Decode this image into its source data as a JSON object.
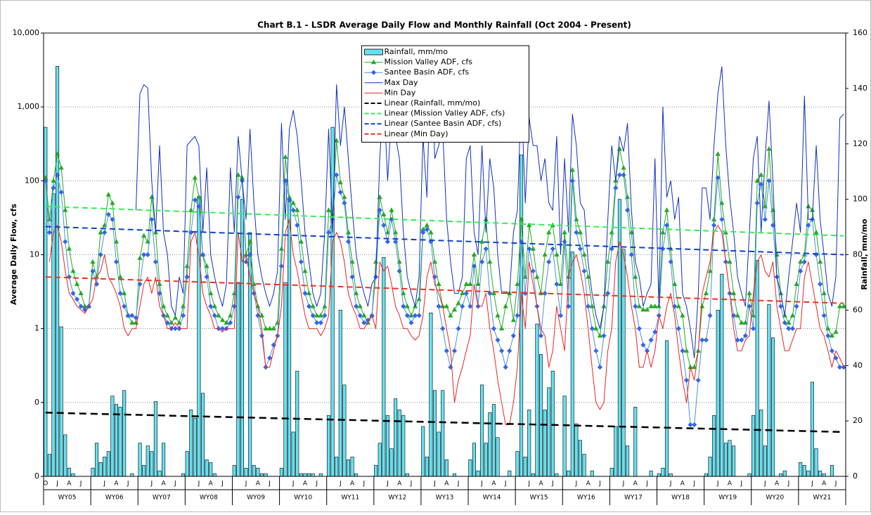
{
  "chart_data": {
    "type": "combo",
    "title": "Chart B.1 - LSDR Average Daily Flow and Monthly Rainfall (Oct 2004 - Present)",
    "y_label": "Average Daily Flow, cfs",
    "y2_label": "Rainfall, mm/mo",
    "log_scale": true,
    "grid": true,
    "legend_position": "top-center",
    "ylim": [
      0.01,
      10000
    ],
    "yticks": [
      {
        "value": 10000,
        "label": "10,000"
      },
      {
        "value": 1000,
        "label": "1,000"
      },
      100,
      10,
      1,
      {
        "value": 0.1,
        "label": "0"
      },
      {
        "value": 0.01,
        "label": "0"
      }
    ],
    "y2lim": [
      0,
      160
    ],
    "y2ticks": [
      0,
      20,
      40,
      60,
      80,
      100,
      120,
      140,
      160
    ],
    "groups": [
      "WY05",
      "WY06",
      "WY07",
      "WY08",
      "WY09",
      "WY10",
      "WY11",
      "WY12",
      "WY13",
      "WY14",
      "WY15",
      "WY16",
      "WY17",
      "WY18",
      "WY19",
      "WY20",
      "WY21"
    ],
    "categories": [
      "O",
      null,
      null,
      "J",
      null,
      null,
      "A",
      null,
      null,
      "J",
      null,
      null,
      null,
      null,
      null,
      "J",
      null,
      null,
      "A",
      null,
      null,
      "J",
      null,
      null,
      null,
      null,
      null,
      "J",
      null,
      null,
      "A",
      null,
      null,
      "J",
      null,
      null,
      null,
      null,
      null,
      "J",
      null,
      null,
      "A",
      null,
      null,
      "J",
      null,
      null,
      null,
      null,
      null,
      "J",
      null,
      null,
      "A",
      null,
      null,
      "J",
      null,
      null,
      null,
      null,
      null,
      "J",
      null,
      null,
      "A",
      null,
      null,
      "J",
      null,
      null,
      null,
      null,
      null,
      "J",
      null,
      null,
      "A",
      null,
      null,
      "J",
      null,
      null,
      null,
      null,
      null,
      "J",
      null,
      null,
      "A",
      null,
      null,
      "J",
      null,
      null,
      null,
      null,
      null,
      "J",
      null,
      null,
      "A",
      null,
      null,
      "J",
      null,
      null,
      null,
      null,
      null,
      "J",
      null,
      null,
      "A",
      null,
      null,
      "J",
      null,
      null,
      null,
      null,
      null,
      "J",
      null,
      null,
      "A",
      null,
      null,
      "J",
      null,
      null,
      null,
      null,
      null,
      "J",
      null,
      null,
      "A",
      null,
      null,
      "J",
      null,
      null,
      null,
      null,
      null,
      "J",
      null,
      null,
      "A",
      null,
      null,
      "J",
      null,
      null,
      null,
      null,
      null,
      "J",
      null,
      null,
      "A",
      null,
      null,
      "J",
      null,
      null,
      null,
      null,
      null,
      "J",
      null,
      null,
      "A",
      null,
      null,
      "J",
      null,
      null,
      null,
      null,
      null,
      "J",
      null,
      null,
      "A",
      null,
      null,
      "J",
      null,
      null,
      null,
      null,
      null,
      "J",
      null,
      null,
      "A",
      null,
      null,
      "J",
      null,
      null
    ],
    "series": [
      {
        "name": "Rainfall, mm/mo",
        "type": "bar",
        "axis": "y2",
        "color": "#66e0f0",
        "values": [
          126,
          8,
          102,
          148,
          54,
          15,
          3,
          1,
          0,
          0,
          0,
          0,
          3,
          12,
          5,
          7,
          9,
          29,
          26,
          25,
          31,
          0,
          1,
          0,
          12,
          4,
          11,
          9,
          27,
          2,
          12,
          0,
          0,
          0,
          0,
          1,
          9,
          24,
          21,
          101,
          30,
          6,
          5,
          1,
          0,
          0,
          0,
          0,
          4,
          70,
          100,
          3,
          88,
          4,
          3,
          1,
          1,
          0,
          0,
          0,
          3,
          70,
          100,
          16,
          38,
          1,
          1,
          1,
          1,
          0,
          1,
          0,
          22,
          126,
          7,
          60,
          33,
          6,
          7,
          1,
          0,
          0,
          0,
          0,
          4,
          12,
          79,
          22,
          10,
          28,
          24,
          22,
          1,
          0,
          0,
          0,
          18,
          7,
          59,
          31,
          16,
          31,
          6,
          0,
          1,
          0,
          0,
          0,
          6,
          12,
          2,
          33,
          12,
          23,
          26,
          14,
          0,
          0,
          2,
          0,
          9,
          116,
          7,
          24,
          1,
          55,
          44,
          24,
          32,
          38,
          1,
          0,
          29,
          2,
          81,
          19,
          13,
          8,
          0,
          2,
          0,
          0,
          0,
          0,
          3,
          18,
          100,
          82,
          11,
          0,
          25,
          0,
          0,
          0,
          2,
          0,
          1,
          3,
          49,
          1,
          0,
          0,
          0,
          0,
          0,
          0,
          0,
          0,
          1,
          7,
          22,
          60,
          73,
          12,
          13,
          11,
          0,
          0,
          0,
          1,
          22,
          78,
          24,
          11,
          62,
          50,
          0,
          1,
          2,
          0,
          0,
          0,
          5,
          4,
          2,
          34,
          10,
          2,
          1,
          0,
          4,
          0,
          0,
          0
        ]
      },
      {
        "name": "Mission Valley ADF, cfs",
        "type": "line",
        "marker": "triangle",
        "color": "#22aa22",
        "values": [
          110,
          30,
          100,
          230,
          150,
          40,
          12,
          6,
          4,
          3,
          2,
          2,
          8,
          5,
          20,
          25,
          65,
          50,
          15,
          5,
          3,
          1.5,
          1.2,
          1.2,
          9,
          18,
          15,
          60,
          20,
          4,
          2,
          1.5,
          1.2,
          1.4,
          1.2,
          2,
          7,
          40,
          110,
          60,
          10,
          7,
          3,
          2,
          1.5,
          1.3,
          1.2,
          1.5,
          3,
          120,
          110,
          10,
          15,
          4,
          2,
          1.5,
          1,
          1,
          1,
          1.2,
          12,
          210,
          60,
          50,
          40,
          15,
          6,
          3,
          2,
          1.5,
          1.5,
          2,
          40,
          35,
          350,
          95,
          60,
          20,
          8,
          3,
          2,
          1.5,
          1.2,
          1.5,
          8,
          60,
          35,
          20,
          40,
          20,
          8,
          3,
          2,
          1.5,
          2,
          2.5,
          22,
          25,
          20,
          8,
          4,
          2,
          2,
          1.5,
          1.8,
          2.2,
          3,
          4,
          4,
          10,
          4,
          15,
          30,
          8,
          3,
          1.5,
          1,
          2,
          3,
          1.3,
          4,
          30,
          5,
          25,
          12,
          5,
          3,
          10,
          20,
          25,
          10,
          4,
          20,
          5,
          140,
          30,
          20,
          10,
          5,
          2,
          1,
          0.8,
          2,
          8,
          20,
          100,
          270,
          150,
          60,
          20,
          5,
          2,
          1.8,
          1.8,
          2,
          2,
          2,
          20,
          40,
          12,
          4,
          2,
          1.5,
          0.5,
          0.3,
          0.3,
          0.5,
          2,
          3,
          6,
          30,
          230,
          50,
          20,
          8,
          3,
          1.5,
          1.2,
          1.2,
          3,
          1.5,
          100,
          120,
          45,
          270,
          40,
          10,
          3,
          1.5,
          1.2,
          1.5,
          4,
          8,
          10,
          45,
          40,
          20,
          8,
          3,
          1,
          0.8,
          0.9,
          2,
          2
        ]
      },
      {
        "name": "Santee Basin ADF, cfs",
        "type": "line",
        "marker": "diamond",
        "color": "#4a90d9",
        "values": [
          100,
          20,
          80,
          120,
          70,
          15,
          5,
          3,
          2.5,
          2,
          1.8,
          2,
          6,
          4,
          10,
          20,
          35,
          30,
          8,
          3,
          2,
          1.5,
          1.5,
          1.4,
          4,
          10,
          10,
          30,
          8,
          3,
          1.5,
          1.2,
          1,
          1,
          1,
          1.5,
          5,
          20,
          55,
          45,
          10,
          5,
          2,
          1.5,
          1,
          1,
          1,
          1.2,
          2,
          60,
          100,
          8,
          10,
          3,
          1.5,
          0.8,
          0.3,
          0.4,
          0.6,
          0.8,
          7,
          100,
          55,
          40,
          25,
          8,
          3,
          2,
          1.5,
          1.2,
          1.2,
          1.5,
          20,
          30,
          120,
          70,
          50,
          15,
          5,
          2,
          1.5,
          1.2,
          1.3,
          1.5,
          5,
          40,
          25,
          15,
          30,
          15,
          6,
          2,
          1.5,
          1.2,
          1.5,
          1.5,
          20,
          22,
          15,
          5,
          2,
          1,
          0.5,
          0.3,
          0.5,
          1,
          2,
          3,
          2,
          7,
          2,
          8,
          12,
          3,
          1,
          0.7,
          0.5,
          0.3,
          0.5,
          0.8,
          1.5,
          15,
          3,
          12,
          6,
          2,
          0.8,
          3,
          8,
          12,
          4,
          1.5,
          15,
          2,
          100,
          20,
          12,
          6,
          2,
          1,
          0.5,
          0.3,
          0.8,
          3,
          12,
          80,
          120,
          120,
          40,
          10,
          2,
          1,
          0.6,
          0.5,
          0.7,
          0.9,
          1.5,
          12,
          25,
          8,
          2,
          1,
          0.5,
          0.2,
          0.05,
          0.05,
          0.2,
          0.7,
          0.7,
          1.5,
          25,
          110,
          30,
          8,
          3,
          1.5,
          0.7,
          0.7,
          0.8,
          2,
          1,
          50,
          90,
          30,
          100,
          25,
          5,
          2,
          1.2,
          1,
          1,
          2,
          6,
          8,
          25,
          30,
          10,
          4,
          1.5,
          0.8,
          0.5,
          0.4,
          0.3,
          0.3
        ]
      },
      {
        "name": "Max Day",
        "type": "line",
        "color": "#1030c0",
        "values": [
          null,
          null,
          null,
          null,
          null,
          null,
          null,
          null,
          null,
          null,
          null,
          null,
          null,
          null,
          null,
          null,
          null,
          null,
          null,
          null,
          null,
          null,
          null,
          40,
          1500,
          2000,
          1800,
          100,
          20,
          300,
          20,
          10,
          2,
          1.5,
          5,
          3,
          300,
          350,
          400,
          300,
          20,
          150,
          10,
          5,
          3,
          2,
          4,
          150,
          20,
          400,
          100,
          30,
          500,
          50,
          10,
          5,
          3,
          2,
          3,
          6,
          600,
          30,
          500,
          900,
          400,
          100,
          20,
          8,
          3,
          2,
          3,
          20,
          500,
          20,
          2000,
          300,
          1000,
          200,
          40,
          10,
          5,
          3,
          2,
          4,
          5,
          200,
          1500,
          100,
          800,
          400,
          200,
          20,
          5,
          3,
          2,
          5,
          400,
          60,
          5000,
          200,
          300,
          500,
          30,
          8,
          3,
          3,
          5,
          200,
          300,
          20,
          10,
          300,
          20,
          200,
          80,
          10,
          3,
          3,
          3,
          20,
          40,
          1500,
          50,
          700,
          300,
          300,
          100,
          200,
          50,
          40,
          400,
          10,
          200,
          20,
          800,
          300,
          50,
          40,
          8,
          3,
          1.5,
          1,
          2,
          30,
          300,
          100,
          400,
          250,
          600,
          40,
          8,
          5,
          2,
          3,
          4,
          200,
          2,
          1000,
          60,
          100,
          30,
          60,
          3,
          2,
          1,
          0.4,
          3,
          80,
          80,
          30,
          300,
          1500,
          3500,
          300,
          60,
          20,
          5,
          3,
          2,
          20,
          200,
          400,
          20,
          200,
          1200,
          100,
          5,
          3,
          1.5,
          5,
          15,
          50,
          20,
          1400,
          30,
          30,
          300,
          30,
          10,
          3,
          2,
          5,
          700,
          800
        ]
      },
      {
        "name": "Min Day",
        "type": "line",
        "color": "#ee2222",
        "values": [
          null,
          8,
          20,
          25,
          15,
          6,
          3,
          2.5,
          2,
          1.8,
          1.6,
          2,
          2.5,
          5,
          6,
          10,
          5,
          4,
          3,
          2,
          1,
          0.8,
          1,
          1,
          2,
          4,
          5,
          3,
          5,
          2,
          1.5,
          1,
          1,
          1.2,
          1,
          1,
          1,
          15,
          20,
          10,
          3,
          2,
          1.5,
          1,
          1,
          0.9,
          1,
          1,
          1,
          20,
          8,
          10,
          5,
          3,
          2,
          1,
          0.3,
          0.3,
          0.5,
          0.8,
          2,
          20,
          30,
          10,
          6,
          3,
          1.5,
          1,
          1,
          1,
          0.8,
          1,
          1.5,
          15,
          20,
          15,
          8,
          3,
          2,
          1.5,
          1,
          1,
          1.2,
          1.5,
          1,
          8,
          6,
          7,
          4,
          2,
          1.5,
          1,
          1,
          0.8,
          0.7,
          0.8,
          1.5,
          5,
          8,
          4,
          3,
          2,
          1,
          0.5,
          0.1,
          0.2,
          0.3,
          0.5,
          0.8,
          4,
          2,
          2,
          3,
          1,
          0.5,
          0.2,
          0.1,
          0.05,
          0.05,
          0.1,
          0.3,
          3,
          1,
          8,
          4,
          2,
          1,
          0.8,
          0.3,
          0.5,
          2,
          1,
          0.5,
          5,
          8,
          10,
          6,
          3,
          1,
          0.3,
          0.1,
          0.08,
          0.1,
          0.5,
          1,
          8,
          15,
          10,
          5,
          2,
          1,
          0.3,
          0.3,
          0.5,
          0.3,
          0.5,
          1.5,
          1,
          2,
          3,
          1.5,
          0.5,
          0.2,
          0.1,
          0.3,
          0.2,
          0.5,
          3,
          5,
          8,
          20,
          25,
          20,
          8,
          3,
          1,
          0.5,
          0.5,
          0.7,
          0.8,
          3,
          8,
          10,
          6,
          5,
          8,
          2,
          1,
          0.5,
          0.5,
          0.7,
          1,
          1,
          5,
          8,
          4,
          2,
          1,
          0.8,
          0.5,
          0.3,
          0.5,
          0.4,
          0.3
        ]
      }
    ],
    "trendlines": [
      {
        "name": "Linear (Rainfall, mm/mo)",
        "axis": "y2",
        "color": "#000000",
        "values": [
          23,
          16
        ]
      },
      {
        "name": "Linear (Mission Valley ADF, cfs)",
        "color": "#33ee55",
        "values": [
          45,
          18
        ]
      },
      {
        "name": "Linear (Santee Basin ADF, cfs)",
        "color": "#1040d0",
        "values": [
          24,
          10
        ]
      },
      {
        "name": "Linear (Min Day)",
        "color": "#ee3322",
        "values": [
          5,
          2.2
        ]
      }
    ]
  }
}
